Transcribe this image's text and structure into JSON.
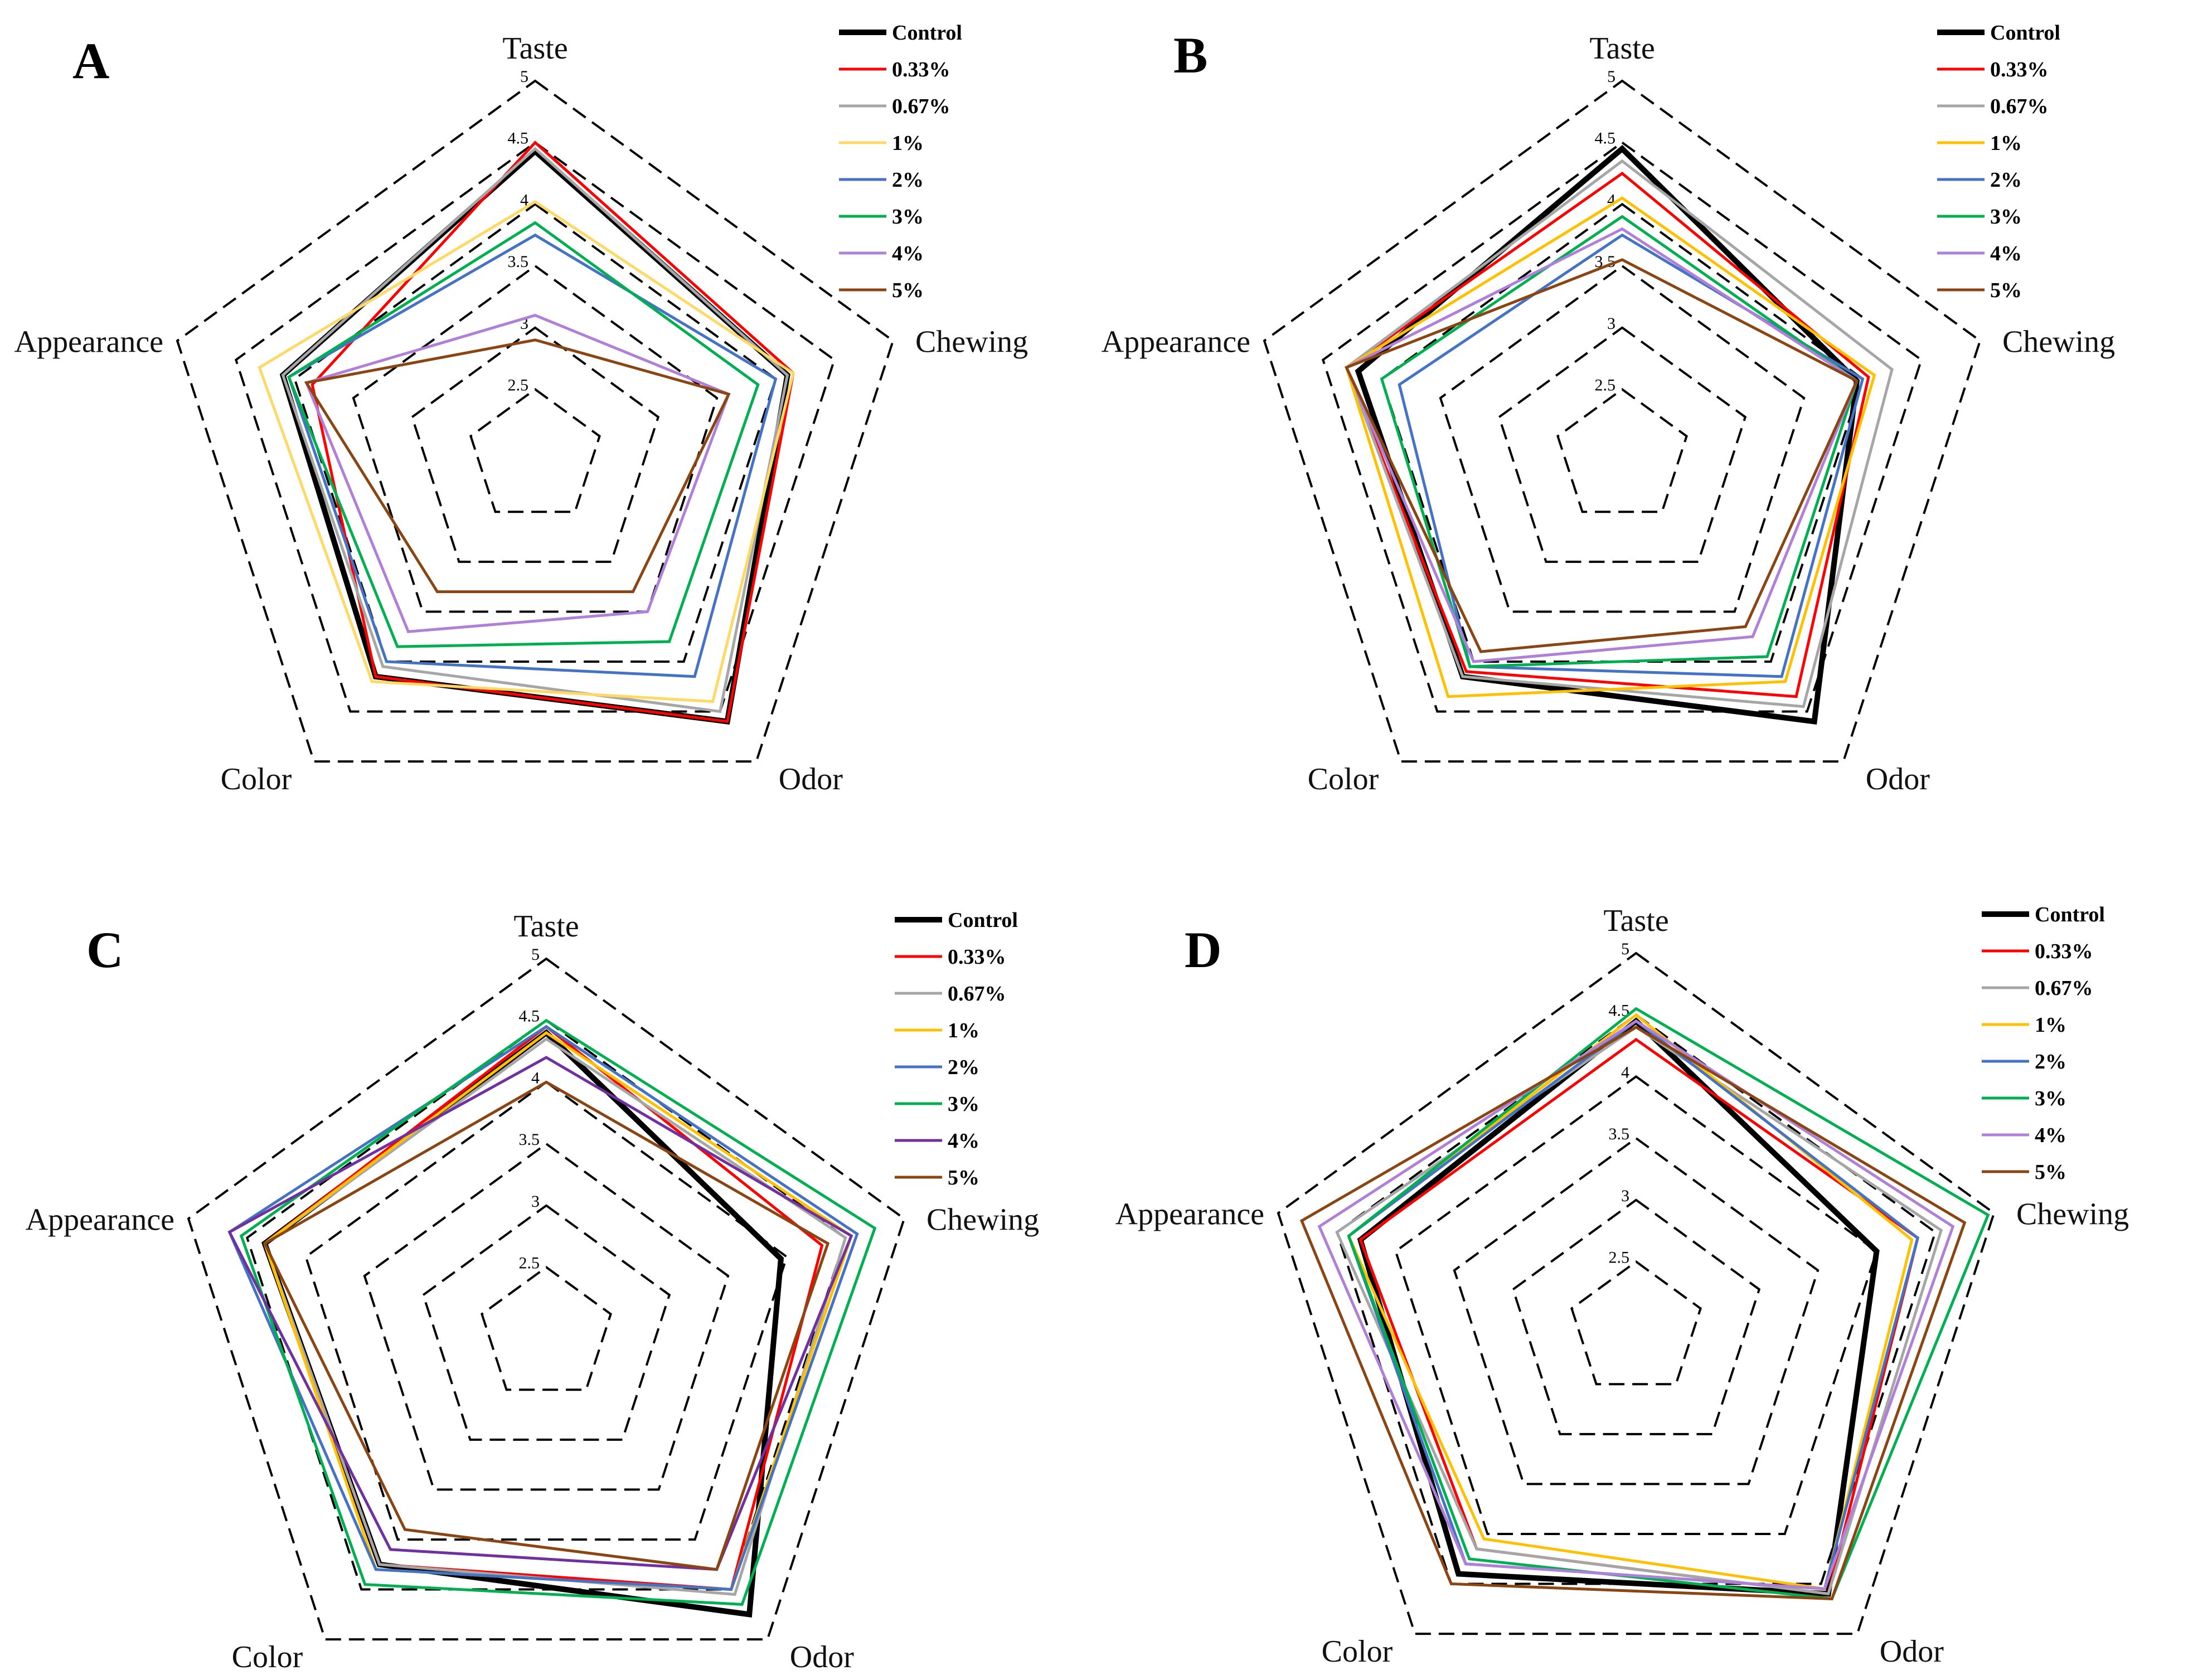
{
  "chart_data": [
    {
      "type": "radar",
      "panel": "A",
      "axes": [
        "Taste",
        "Chewing",
        "Odor",
        "Color",
        "Appearance"
      ],
      "rlim": [
        2.5,
        5
      ],
      "ticks": [
        "2.5",
        "3",
        "3.5",
        "4",
        "4.5",
        "5"
      ],
      "legend": [
        "Control",
        "0.33%",
        "0.67%",
        "1%",
        "2%",
        "3%",
        "4%",
        "5%"
      ],
      "series": [
        {
          "name": "Control",
          "color": "#000000",
          "values": [
            4.43,
            4.1,
            4.6,
            4.15,
            4.1
          ]
        },
        {
          "name": "0.33%",
          "color": "#ff0000",
          "values": [
            4.5,
            4.15,
            4.6,
            4.15,
            3.85
          ]
        },
        {
          "name": "0.67%",
          "color": "#a6a6a6",
          "values": [
            4.45,
            4.1,
            4.5,
            4.05,
            4.1
          ]
        },
        {
          "name": "1%",
          "color": "#ffd966",
          "values": [
            4.02,
            4.15,
            4.4,
            4.2,
            4.3
          ]
        },
        {
          "name": "2%",
          "color": "#4472c4",
          "values": [
            3.75,
            4.0,
            4.15,
            4.0,
            4.05
          ]
        },
        {
          "name": "3%",
          "color": "#00b050",
          "values": [
            3.85,
            3.85,
            3.8,
            3.85,
            4.05
          ]
        },
        {
          "name": "4%",
          "color": "#b07fd8",
          "values": [
            3.1,
            3.6,
            3.5,
            3.7,
            3.9
          ]
        },
        {
          "name": "5%",
          "color": "#8b4513",
          "values": [
            2.9,
            3.6,
            3.3,
            3.3,
            3.9
          ]
        }
      ]
    },
    {
      "type": "radar",
      "panel": "B",
      "axes": [
        "Taste",
        "Chewing",
        "Odor",
        "Color",
        "Appearance"
      ],
      "rlim": [
        2.5,
        5
      ],
      "ticks": [
        "2.5",
        "3",
        "3.5",
        "4",
        "4.5",
        "5"
      ],
      "legend": [
        "Control",
        "0.33%",
        "0.67%",
        "1%",
        "2%",
        "3%",
        "4%",
        "5%"
      ],
      "series": [
        {
          "name": "Control",
          "color": "#000000",
          "values": [
            4.45,
            3.95,
            4.6,
            4.15,
            4.2
          ]
        },
        {
          "name": "0.33%",
          "color": "#ff0000",
          "values": [
            4.25,
            4.05,
            4.35,
            4.1,
            4.3
          ]
        },
        {
          "name": "0.67%",
          "color": "#a6a6a6",
          "values": [
            4.35,
            4.25,
            4.45,
            4.15,
            4.3
          ]
        },
        {
          "name": "1%",
          "color": "#ffc000",
          "values": [
            4.05,
            4.1,
            4.2,
            4.35,
            4.3
          ]
        },
        {
          "name": "2%",
          "color": "#4472c4",
          "values": [
            3.75,
            4.0,
            4.15,
            4.05,
            3.85
          ]
        },
        {
          "name": "3%",
          "color": "#00b050",
          "values": [
            3.9,
            3.95,
            3.95,
            4.05,
            4.0
          ]
        },
        {
          "name": "4%",
          "color": "#b07fd8",
          "values": [
            3.8,
            3.95,
            3.75,
            4.0,
            4.3
          ]
        },
        {
          "name": "5%",
          "color": "#8b4513",
          "values": [
            3.55,
            3.95,
            3.65,
            3.9,
            4.3
          ]
        }
      ]
    },
    {
      "type": "radar",
      "panel": "C",
      "axes": [
        "Taste",
        "Chewing",
        "Odor",
        "Color",
        "Appearance"
      ],
      "rlim": [
        2.5,
        5
      ],
      "ticks": [
        "2.5",
        "3",
        "3.5",
        "4",
        "4.5",
        "5"
      ],
      "legend": [
        "Control",
        "0.33%",
        "0.67%",
        "1%",
        "2%",
        "3%",
        "4%",
        "5%"
      ],
      "series": [
        {
          "name": "Control",
          "color": "#000000",
          "values": [
            4.4,
            3.95,
            4.75,
            4.25,
            4.35
          ]
        },
        {
          "name": "0.33%",
          "color": "#ff0000",
          "values": [
            4.45,
            4.3,
            4.5,
            4.25,
            4.35
          ]
        },
        {
          "name": "0.67%",
          "color": "#a6a6a6",
          "values": [
            4.35,
            4.5,
            4.55,
            4.25,
            4.35
          ]
        },
        {
          "name": "1%",
          "color": "#ffc000",
          "values": [
            4.4,
            4.55,
            4.5,
            4.3,
            4.35
          ]
        },
        {
          "name": "2%",
          "color": "#4472c4",
          "values": [
            4.45,
            4.6,
            4.5,
            4.3,
            4.65
          ]
        },
        {
          "name": "3%",
          "color": "#00b050",
          "values": [
            4.5,
            4.75,
            4.65,
            4.45,
            4.55
          ]
        },
        {
          "name": "4%",
          "color": "#7030a0",
          "values": [
            4.2,
            4.55,
            4.3,
            4.1,
            4.65
          ]
        },
        {
          "name": "5%",
          "color": "#8b4513",
          "values": [
            4.0,
            4.35,
            4.3,
            3.9,
            4.35
          ]
        }
      ]
    },
    {
      "type": "radar",
      "panel": "D",
      "axes": [
        "Taste",
        "Chewing",
        "Odor",
        "Color",
        "Appearance"
      ],
      "rlim": [
        2.5,
        5
      ],
      "ticks": [
        "2.5",
        "3",
        "3.5",
        "4",
        "4.5",
        "5"
      ],
      "legend": [
        "Control",
        "0.33%",
        "0.67%",
        "1%",
        "2%",
        "3%",
        "4%",
        "5%"
      ],
      "series": [
        {
          "name": "Control",
          "color": "#000000",
          "values": [
            4.45,
            4.0,
            4.6,
            4.4,
            4.3
          ]
        },
        {
          "name": "0.33%",
          "color": "#ff0000",
          "values": [
            4.3,
            4.35,
            4.6,
            4.15,
            4.3
          ]
        },
        {
          "name": "0.67%",
          "color": "#a6a6a6",
          "values": [
            4.4,
            4.55,
            4.6,
            4.15,
            4.5
          ]
        },
        {
          "name": "1%",
          "color": "#ffc000",
          "values": [
            4.5,
            4.3,
            4.55,
            4.05,
            4.4
          ]
        },
        {
          "name": "2%",
          "color": "#4472c4",
          "values": [
            4.45,
            4.35,
            4.55,
            4.3,
            4.4
          ]
        },
        {
          "name": "3%",
          "color": "#00b050",
          "values": [
            4.55,
            4.95,
            4.65,
            4.25,
            4.4
          ]
        },
        {
          "name": "4%",
          "color": "#b07fd8",
          "values": [
            4.45,
            4.65,
            4.55,
            4.3,
            4.65
          ]
        },
        {
          "name": "5%",
          "color": "#8b4513",
          "values": [
            4.4,
            4.75,
            4.65,
            4.5,
            4.8
          ]
        }
      ]
    }
  ]
}
